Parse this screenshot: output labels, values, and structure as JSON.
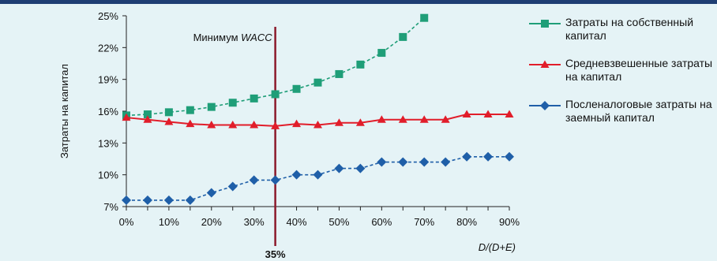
{
  "colors": {
    "equity": "#1f9e78",
    "wacc": "#e11d2a",
    "debt": "#1f5fa8",
    "marker": "#8b1a2b",
    "background": "#e5f3f6",
    "header": "#1e3e73"
  },
  "chart_data": {
    "type": "line",
    "ylabel": "Затраты на капитал",
    "xlabel_prefix": "D/(D+E)",
    "x_ticks": [
      "0%",
      "5%",
      "10%",
      "15%",
      "20%",
      "25%",
      "30%",
      "35%",
      "40%",
      "45%",
      "50%",
      "55%",
      "60%",
      "65%",
      "70%",
      "75%",
      "80%",
      "85%",
      "90%"
    ],
    "x_tick_labels_shown": [
      "0%",
      "10%",
      "20%",
      "30%",
      "40%",
      "50%",
      "60%",
      "70%",
      "80%",
      "90%"
    ],
    "y_ticks": [
      "25%",
      "22%",
      "19%",
      "16%",
      "13%",
      "10%",
      "7%"
    ],
    "xlim": [
      0,
      90
    ],
    "ylim": [
      7,
      25
    ],
    "grid": false,
    "legend_position": "right",
    "annotation_label": "Минимум",
    "annotation_label_italic": "WACC",
    "annotation_x": 35,
    "annotation_value_label": "35%",
    "series": [
      {
        "name": "Затраты на собственный капитал",
        "marker": "square",
        "x": [
          0,
          5,
          10,
          15,
          20,
          25,
          30,
          35,
          40,
          45,
          50,
          55,
          60,
          65,
          70
        ],
        "y": [
          15.6,
          15.7,
          15.9,
          16.1,
          16.4,
          16.8,
          17.2,
          17.6,
          18.1,
          18.7,
          19.5,
          20.4,
          21.5,
          23.0,
          24.8
        ]
      },
      {
        "name": "Средневзвешенные затраты на капитал",
        "marker": "triangle",
        "x": [
          0,
          5,
          10,
          15,
          20,
          25,
          30,
          35,
          40,
          45,
          50,
          55,
          60,
          65,
          70,
          75,
          80,
          85,
          90
        ],
        "y": [
          15.4,
          15.2,
          15.0,
          14.8,
          14.7,
          14.7,
          14.7,
          14.6,
          14.8,
          14.7,
          14.9,
          14.9,
          15.2,
          15.2,
          15.2,
          15.2,
          15.7,
          15.7,
          15.7
        ]
      },
      {
        "name": "Посленалоговые затраты на заемный капитал",
        "marker": "diamond",
        "x": [
          0,
          5,
          10,
          15,
          20,
          25,
          30,
          35,
          40,
          45,
          50,
          55,
          60,
          65,
          70,
          75,
          80,
          85,
          90
        ],
        "y": [
          7.6,
          7.6,
          7.6,
          7.6,
          8.3,
          8.9,
          9.5,
          9.5,
          10.0,
          10.0,
          10.6,
          10.6,
          11.2,
          11.2,
          11.2,
          11.2,
          11.7,
          11.7,
          11.7
        ]
      }
    ]
  }
}
